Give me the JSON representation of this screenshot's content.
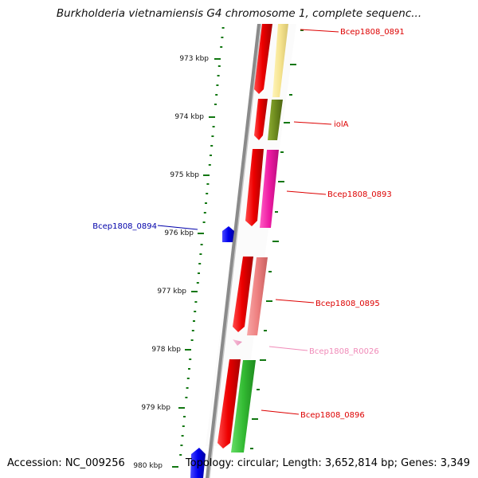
{
  "header": {
    "title": "Burkholderia vietnamiensis G4 chromosome 1, complete sequenc..."
  },
  "footer": {
    "accession": "Accession: NC_009256",
    "summary": "Topology: circular; Length: 3,652,814 bp; Genes: 3,349"
  },
  "ruler": {
    "labels": [
      "973 kbp",
      "974 kbp",
      "975 kbp",
      "976 kbp",
      "977 kbp",
      "978 kbp",
      "979 kbp",
      "980 kbp"
    ]
  },
  "features": [
    {
      "id": "Bcep1808_0891",
      "label": "Bcep1808_0891",
      "strand": "forward",
      "gene_color": "#f5e38e",
      "label_color": "#dd0000"
    },
    {
      "id": "iolA",
      "label": "iolA",
      "strand": "forward",
      "gene_color": "#6d8a1d",
      "label_color": "#dd0000"
    },
    {
      "id": "Bcep1808_0893",
      "label": "Bcep1808_0893",
      "strand": "forward",
      "gene_color": "#ee1aa3",
      "label_color": "#dd0000"
    },
    {
      "id": "Bcep1808_0894",
      "label": "Bcep1808_0894",
      "strand": "reverse",
      "gene_color": "#0000ee",
      "label_color": "#0000aa"
    },
    {
      "id": "Bcep1808_0895",
      "label": "Bcep1808_0895",
      "strand": "forward",
      "gene_color": "#ee8080",
      "label_color": "#dd0000"
    },
    {
      "id": "Bcep1808_R0026",
      "label": "Bcep1808_R0026",
      "strand": "forward",
      "gene_color": "#f0a0c8",
      "label_color": "#f08ab8"
    },
    {
      "id": "Bcep1808_0896",
      "label": "Bcep1808_0896",
      "strand": "forward",
      "gene_color": "#33bb33",
      "label_color": "#dd0000"
    }
  ],
  "colors": {
    "backbone": "#888888",
    "cds": "#ee0000",
    "tick": "#117711"
  }
}
